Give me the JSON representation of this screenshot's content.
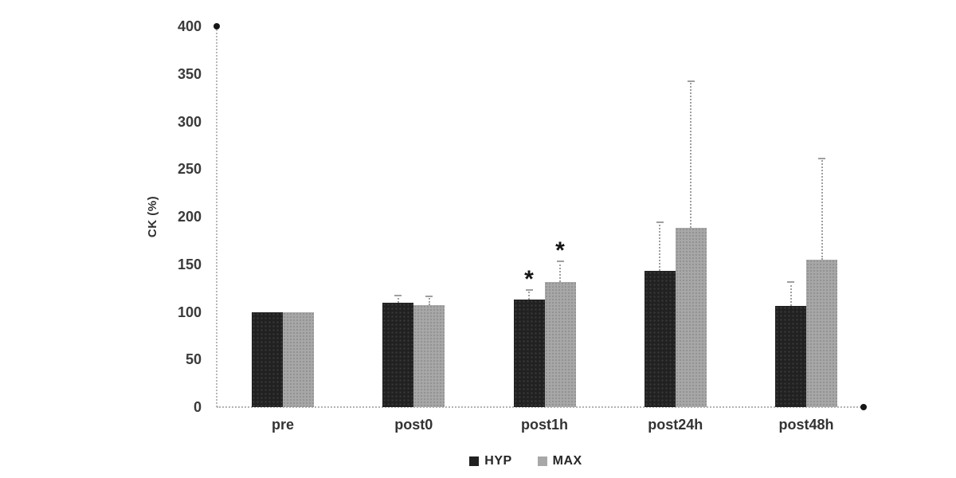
{
  "chart_data": {
    "type": "bar",
    "title": "",
    "xlabel": "",
    "ylabel": "CK (%)",
    "ylim": [
      0,
      400
    ],
    "yticks": [
      400,
      350,
      300,
      250,
      200,
      150,
      100,
      50,
      0
    ],
    "grid": false,
    "legend_position": "bottom-center",
    "categories": [
      "pre",
      "post0",
      "post1h",
      "post24h",
      "post48h"
    ],
    "series": [
      {
        "name": "HYP",
        "color": "#212121",
        "values": [
          100,
          110,
          113,
          143,
          106
        ],
        "errors_plus": [
          0,
          8,
          11,
          52,
          26
        ],
        "sig_markers": [
          "",
          "",
          "*",
          "",
          ""
        ]
      },
      {
        "name": "MAX",
        "color": "#a8a8a8",
        "values": [
          100,
          107,
          131,
          188,
          155
        ],
        "errors_plus": [
          0,
          10,
          23,
          155,
          107
        ],
        "sig_markers": [
          "",
          "",
          "*",
          "",
          ""
        ]
      }
    ],
    "colors": {
      "axis": "#b8b8b8",
      "error_bar": "#9f9f9f",
      "tick_text": "#3a3a3a",
      "marker": "#141414"
    }
  }
}
